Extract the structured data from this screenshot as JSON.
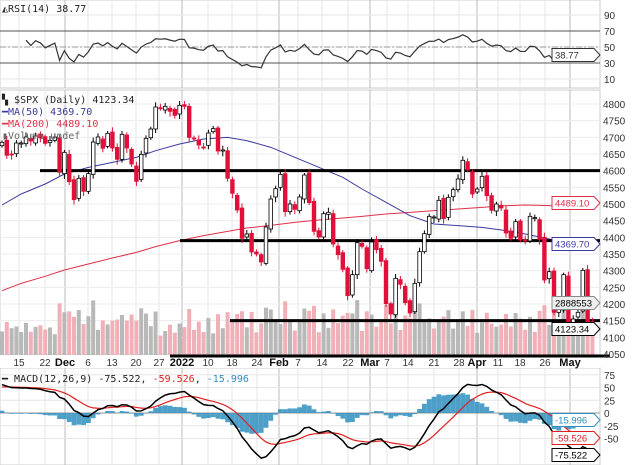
{
  "chart_data": [
    {
      "type": "line",
      "panel": "rsi",
      "legend": "RSI(14) 38.77",
      "current_value_tag": "38.77",
      "ylim": [
        0,
        100
      ],
      "y_tick_labels": [
        "90",
        "70",
        "50",
        "30",
        "10"
      ],
      "reference_lines": [
        70,
        50,
        30
      ],
      "colors": {
        "line": "#333333",
        "ref": "#555555"
      }
    },
    {
      "type": "candlestick",
      "panel": "price",
      "legend": {
        "symbol": "$SPX (Daily) 4123.34",
        "ma50": "MA(50) 4369.70",
        "ma200": "MA(200) 4489.10",
        "volume": "Volume undef"
      },
      "ylim": [
        4050,
        4810
      ],
      "y_tick_labels": [
        "4800",
        "4750",
        "4700",
        "4650",
        "4600",
        "4550",
        "4500",
        "4450",
        "4400",
        "4350",
        "4300",
        "4250",
        "4200",
        "4150",
        "4100",
        "4050"
      ],
      "close": [
        4685,
        4646,
        4649,
        4683,
        4683,
        4701,
        4689,
        4704,
        4698,
        4682,
        4691,
        4701,
        4595,
        4655,
        4567,
        4513,
        4577,
        4538,
        4591,
        4686,
        4701,
        4667,
        4712,
        4668,
        4634,
        4709,
        4668,
        4620,
        4568,
        4649,
        4697,
        4725,
        4791,
        4786,
        4793,
        4778,
        4766,
        4796,
        4793,
        4700,
        4696,
        4677,
        4670,
        4713,
        4726,
        4659,
        4662,
        4577,
        4532,
        4482,
        4397,
        4410,
        4356,
        4350,
        4326,
        4431,
        4515,
        4546,
        4589,
        4477,
        4500,
        4484,
        4521,
        4587,
        4504,
        4418,
        4401,
        4471,
        4475,
        4380,
        4348,
        4304,
        4225,
        4288,
        4384,
        4373,
        4306,
        4386,
        4363,
        4328,
        4201,
        4170,
        4277,
        4259,
        4204,
        4173,
        4262,
        4357,
        4411,
        4463,
        4461,
        4511,
        4456,
        4520,
        4543,
        4575,
        4631,
        4602,
        4530,
        4545,
        4583,
        4525,
        4481,
        4500,
        4488,
        4413,
        4397,
        4447,
        4392,
        4391,
        4463,
        4459,
        4394,
        4272,
        4297,
        4175,
        4184,
        4288,
        4132,
        4155,
        4175,
        4301,
        4147,
        4123
      ],
      "ma50_weekly": [
        4497,
        4530,
        4560,
        4590,
        4610,
        4625,
        4640,
        4660,
        4680,
        4695,
        4700,
        4690,
        4670,
        4640,
        4610,
        4580,
        4545,
        4505,
        4465,
        4440,
        4435,
        4430,
        4420,
        4410,
        4395,
        4372
      ],
      "ma200_weekly": [
        4240,
        4262,
        4283,
        4302,
        4320,
        4338,
        4355,
        4372,
        4390,
        4405,
        4418,
        4428,
        4436,
        4445,
        4452,
        4458,
        4463,
        4470,
        4475,
        4480,
        4485,
        4490,
        4495,
        4497,
        4495,
        4490
      ],
      "support_lines": [
        4600,
        4390,
        4150
      ],
      "value_tags": {
        "ma200": "4489.10",
        "ma50": "4369.70",
        "volume": "2888553",
        "close": "4123.34"
      },
      "colors": {
        "up": "#000000",
        "down": "#e0103a",
        "ma50": "#3a3aa0",
        "ma200": "#e0304a",
        "volume": "#b8b8b8",
        "volume_down": "#f0b0b8"
      }
    },
    {
      "type": "line",
      "panel": "macd",
      "legend": {
        "name": "MACD(12,26,9)",
        "macd": "-75.522",
        "signal": "-59.526",
        "histogram": "-15.996"
      },
      "ylim": [
        -80,
        80
      ],
      "y_tick_labels": [
        "75",
        "50",
        "25",
        "0",
        "-25",
        "-50"
      ],
      "value_tags": {
        "histogram": "-15.996",
        "signal": "-59.526",
        "macd": "-75.522"
      },
      "colors": {
        "macd": "#000000",
        "signal": "#e02020",
        "histogram": "#2f8fc0"
      }
    }
  ],
  "x_axis": {
    "tick_labels": [
      "15",
      "22",
      "Dec",
      "6",
      "13",
      "20",
      "27",
      "2022",
      "10",
      "18",
      "24",
      "Feb",
      "7",
      "14",
      "22",
      "Mar",
      "7",
      "14",
      "21",
      "28",
      "Apr",
      "11",
      "18",
      "26",
      "May"
    ]
  }
}
